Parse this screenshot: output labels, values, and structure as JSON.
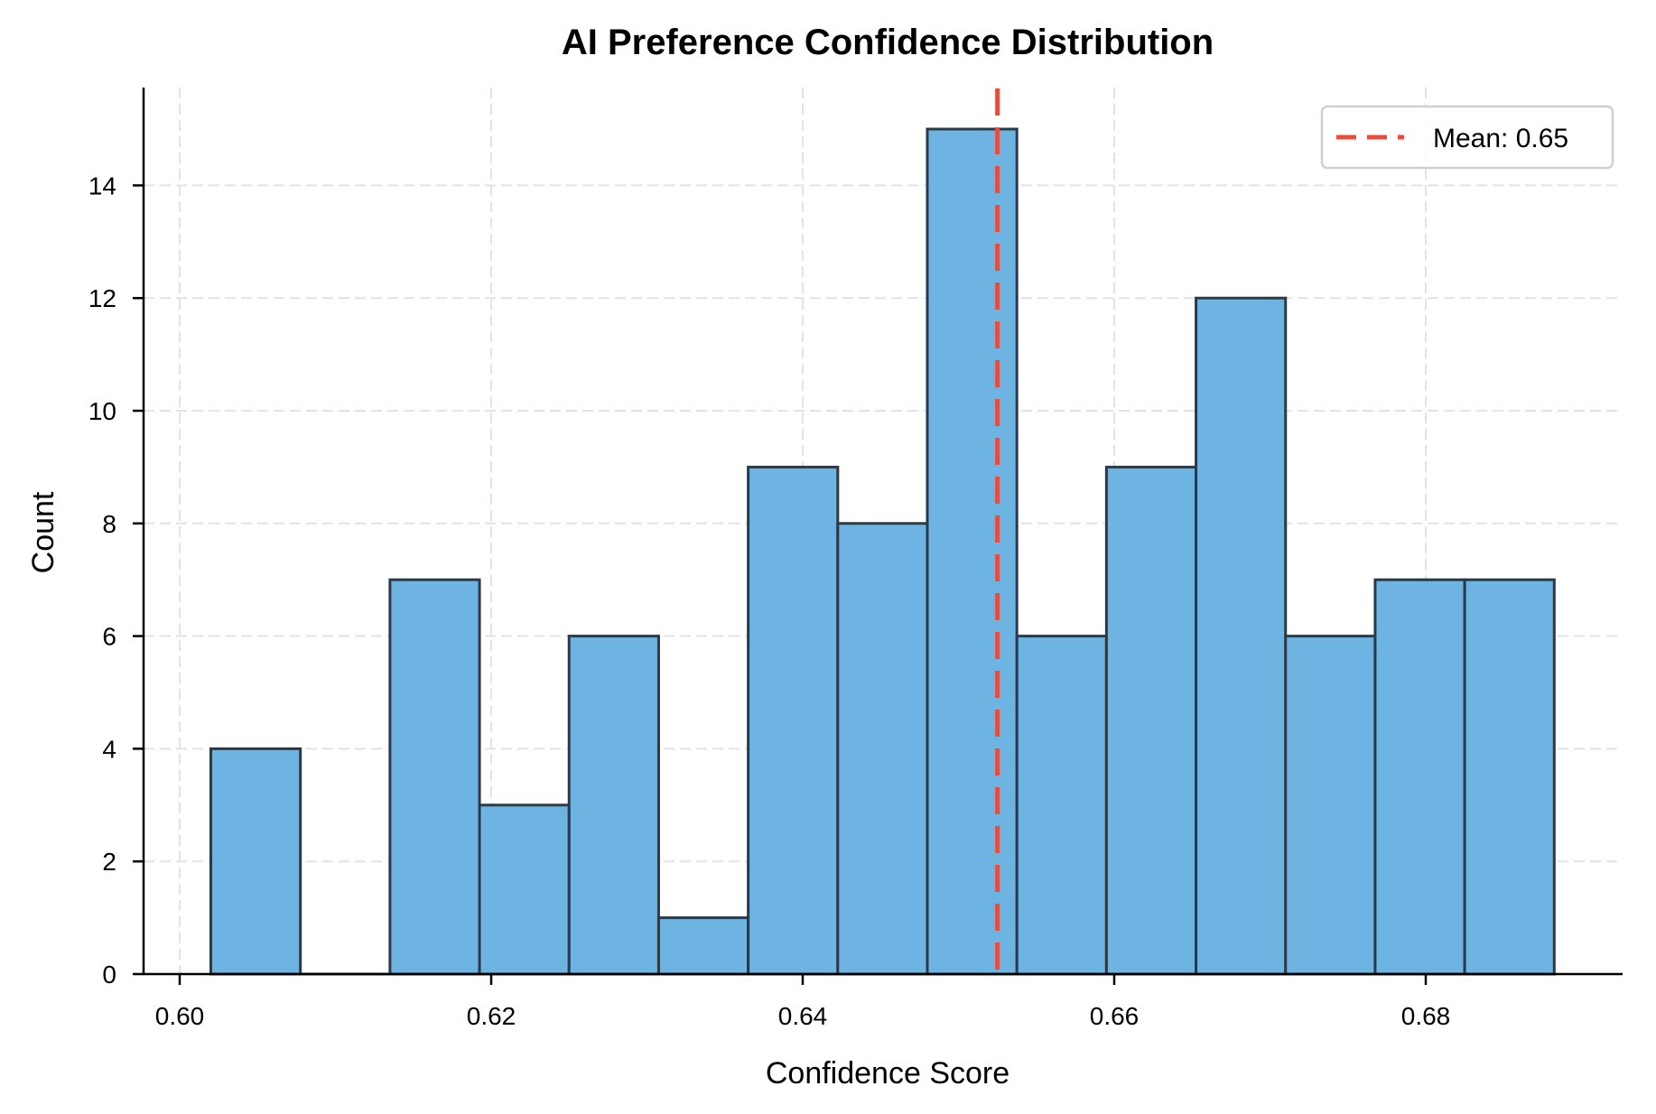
{
  "chart_data": {
    "type": "bar",
    "subtype": "histogram",
    "title": "AI Preference Confidence Distribution",
    "xlabel": "Confidence Score",
    "ylabel": "Count",
    "xlim": [
      0.598,
      0.693
    ],
    "ylim": [
      0,
      15.75
    ],
    "x_ticks": [
      0.6,
      0.62,
      0.64,
      0.66,
      0.68
    ],
    "x_tick_labels": [
      "0.60",
      "0.62",
      "0.64",
      "0.66",
      "0.68"
    ],
    "y_ticks": [
      0,
      2,
      4,
      6,
      8,
      10,
      12,
      14
    ],
    "y_tick_labels": [
      "0",
      "2",
      "4",
      "6",
      "8",
      "10",
      "12",
      "14"
    ],
    "bin_start": 0.602,
    "bin_width": 0.00575,
    "bin_edges": [
      0.602,
      0.6077,
      0.6135,
      0.6192,
      0.625,
      0.6307,
      0.6365,
      0.6422,
      0.648,
      0.6537,
      0.6595,
      0.6652,
      0.671,
      0.6767,
      0.6825,
      0.6882
    ],
    "series": [
      {
        "name": "Confidence Score",
        "values": [
          4,
          0,
          7,
          3,
          6,
          1,
          9,
          8,
          15,
          6,
          9,
          12,
          6,
          7,
          7
        ],
        "color": "#6EB4E3",
        "edgecolor": "#2B3A46"
      }
    ],
    "annotations": [
      {
        "type": "vline",
        "x": 0.6525,
        "style": "dashed",
        "color": "#E74C3C",
        "label": "Mean: 0.65"
      }
    ],
    "grid": true,
    "legend_position": "upper right",
    "legend": [
      {
        "label": "Mean: 0.65",
        "color": "#E74C3C",
        "style": "dashed"
      }
    ]
  },
  "colors": {
    "bar_fill": "#6EB4E3",
    "bar_edge": "#2B3A46",
    "mean_line": "#E74C3C",
    "grid": "#E3E3E3",
    "legend_border": "#D0D0D0"
  }
}
